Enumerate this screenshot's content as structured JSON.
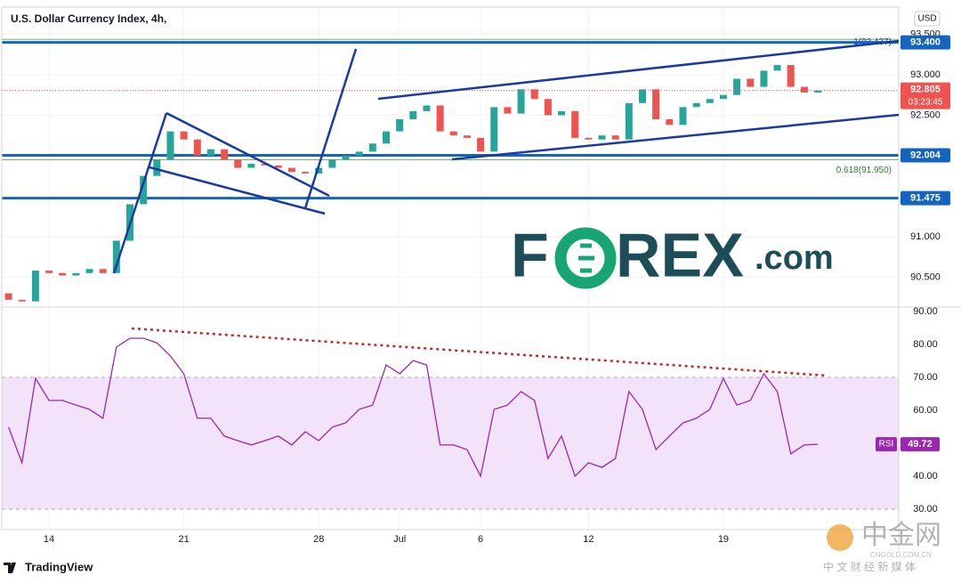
{
  "header": {
    "title": "U.S. Dollar Currency Index, 4h,",
    "currency": "USD"
  },
  "branding": {
    "logo": "TradingView",
    "watermark_left": "F",
    "watermark_right": "REX",
    "watermark_suffix": ".com",
    "cn_name": "中金网",
    "cn_site": "CNGOLD.COM.CN",
    "cn_slogan": "中 文 财 经 新 媒 体"
  },
  "chart_data": [
    {
      "type": "candlestick",
      "x": [
        -1.5,
        -1,
        -0.5,
        0,
        0.5,
        1,
        1.5,
        2,
        2.5,
        3,
        3.5,
        4,
        4.5,
        5,
        5.5,
        6,
        6.5,
        7,
        7.5,
        8,
        8.5,
        9,
        9.5,
        10,
        10.5,
        11,
        11.5,
        12,
        12.5,
        13,
        13.5,
        14,
        14.5,
        15,
        15.5,
        16,
        16.5,
        17,
        17.5,
        18,
        18.5,
        19,
        19.5,
        20,
        20.5,
        21,
        21.5,
        22,
        22.5,
        23,
        23.5,
        24,
        24.5,
        25,
        25.5,
        26,
        26.5,
        27,
        27.5,
        28,
        28.5
      ],
      "open": [
        90.3,
        90.22,
        90.2,
        90.58,
        90.55,
        90.52,
        90.55,
        90.6,
        90.55,
        90.95,
        91.4,
        91.75,
        91.95,
        92.3,
        92.2,
        92.0,
        92.08,
        91.95,
        91.85,
        91.9,
        91.88,
        91.85,
        91.8,
        91.78,
        91.85,
        91.95,
        92.0,
        92.05,
        92.15,
        92.3,
        92.45,
        92.55,
        92.62,
        92.3,
        92.25,
        92.22,
        92.05,
        92.6,
        92.52,
        92.82,
        92.7,
        92.5,
        92.55,
        92.22,
        92.2,
        92.25,
        92.2,
        92.65,
        92.82,
        92.45,
        92.38,
        92.6,
        92.65,
        92.7,
        92.75,
        92.95,
        92.85,
        93.05,
        93.12,
        92.85,
        92.78
      ],
      "close": [
        90.22,
        90.2,
        90.58,
        90.55,
        90.52,
        90.55,
        90.6,
        90.55,
        90.95,
        91.4,
        91.75,
        91.95,
        92.3,
        92.2,
        92.0,
        92.08,
        91.95,
        91.85,
        91.9,
        91.88,
        91.85,
        91.8,
        91.78,
        91.85,
        91.95,
        92.0,
        92.05,
        92.15,
        92.3,
        92.45,
        92.55,
        92.62,
        92.3,
        92.25,
        92.22,
        92.05,
        92.6,
        92.52,
        92.82,
        92.7,
        92.5,
        92.55,
        92.22,
        92.2,
        92.25,
        92.2,
        92.65,
        92.82,
        92.45,
        92.38,
        92.6,
        92.65,
        92.7,
        92.75,
        92.95,
        92.85,
        93.05,
        93.12,
        92.85,
        92.78,
        92.805
      ],
      "up_color": "#26a69a",
      "down_color": "#ef5350",
      "xlim": [
        -1.75,
        31.5
      ],
      "xticks": [
        {
          "value": 0,
          "label": "14"
        },
        {
          "value": 5,
          "label": "21"
        },
        {
          "value": 10,
          "label": "28"
        },
        {
          "value": 13,
          "label": "Jul"
        },
        {
          "value": 16,
          "label": "6"
        },
        {
          "value": 20,
          "label": "12"
        },
        {
          "value": 25,
          "label": "19"
        }
      ],
      "ylim": [
        90.13,
        93.835
      ],
      "yticks": [
        {
          "value": 90.5,
          "label": "90.500"
        },
        {
          "value": 91,
          "label": "91.000"
        },
        {
          "value": 92.5,
          "label": "92.500"
        },
        {
          "value": 93,
          "label": "93.000"
        },
        {
          "value": 93.5,
          "label": "93.500"
        }
      ],
      "levels": [
        {
          "value": 93.4,
          "label": "93.400"
        },
        {
          "value": 92.004,
          "label": "92.004"
        },
        {
          "value": 91.475,
          "label": "91.475"
        }
      ],
      "level_color": "#1565c0",
      "fib": [
        {
          "value": 93.437,
          "label": "1(93.437)"
        },
        {
          "value": 91.95,
          "label": "0.618(91.950)"
        }
      ],
      "countdown": "03:23:45"
    },
    {
      "type": "line",
      "name": "RSI",
      "color": "#9c27b0",
      "x": [
        -1.5,
        -1,
        -0.5,
        0,
        0.5,
        1,
        1.5,
        2,
        2.5,
        3,
        3.5,
        4,
        4.5,
        5,
        5.5,
        6,
        6.5,
        7,
        7.5,
        8,
        8.5,
        9,
        9.5,
        10,
        10.5,
        11,
        11.5,
        12,
        12.5,
        13,
        13.5,
        14,
        14.5,
        15,
        15.5,
        16,
        16.5,
        17,
        17.5,
        18,
        18.5,
        19,
        19.5,
        20,
        20.5,
        21,
        21.5,
        22,
        22.5,
        23,
        23.5,
        24,
        24.5,
        25,
        25.5,
        26,
        26.5,
        27,
        27.5,
        28,
        28.5
      ],
      "values": [
        54.9,
        44.1,
        69.7,
        63,
        63,
        61.6,
        60.3,
        57.6,
        79.2,
        81.9,
        81.9,
        80.5,
        76.5,
        71.1,
        57.6,
        57.6,
        52.2,
        50.8,
        49.5,
        50.8,
        52.2,
        49.5,
        53.5,
        50.8,
        54.9,
        56.2,
        60.3,
        61.6,
        73.8,
        71.1,
        75.1,
        73.8,
        49.5,
        49.5,
        48.1,
        40,
        60.3,
        61.6,
        65.7,
        63,
        45.4,
        52.2,
        40,
        44.1,
        42.7,
        45.4,
        65.7,
        60.3,
        48.1,
        52.2,
        56.2,
        57.6,
        60.3,
        69.7,
        61.6,
        63,
        71.1,
        65.7,
        46.8,
        49.5,
        49.72
      ],
      "xlim": [
        -1.75,
        31.5
      ],
      "ylim": [
        23.8,
        91.35
      ],
      "yticks": [
        {
          "value": 30,
          "label": "30.00"
        },
        {
          "value": 40,
          "label": "40.00"
        },
        {
          "value": 50,
          "label": "50.00"
        },
        {
          "value": 60,
          "label": "60.00"
        },
        {
          "value": 70,
          "label": "70.00"
        },
        {
          "value": 80,
          "label": "80.00"
        },
        {
          "value": 90,
          "label": "90.00"
        }
      ],
      "band": [
        30,
        70
      ],
      "band_color": "#f3e3fa"
    }
  ]
}
